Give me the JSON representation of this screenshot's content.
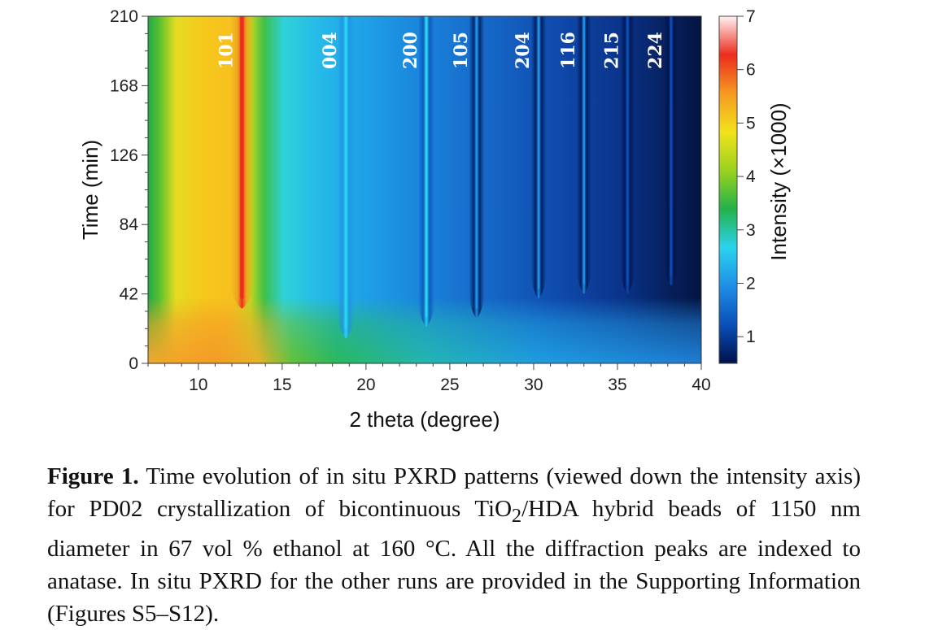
{
  "chart_data": {
    "type": "heatmap",
    "xlabel": "2 theta (degree)",
    "ylabel": "Time (min)",
    "colorbar_label": "Intensity (×1000)",
    "xlim": [
      7,
      40
    ],
    "ylim": [
      0,
      210
    ],
    "x_ticks": [
      10,
      15,
      20,
      25,
      30,
      35,
      40
    ],
    "y_ticks": [
      0,
      42,
      84,
      126,
      168,
      210
    ],
    "colorbar_range": [
      0.5,
      7
    ],
    "colorbar_ticks": [
      1,
      2,
      3,
      4,
      5,
      6,
      7
    ],
    "peaks": [
      {
        "label": "101",
        "x": 12.6,
        "onset": 36,
        "intensity": 6.5
      },
      {
        "label": "004",
        "x": 18.8,
        "onset": 18,
        "intensity": 3.0
      },
      {
        "label": "200",
        "x": 23.6,
        "onset": 25,
        "intensity": 2.6
      },
      {
        "label": "105",
        "x": 26.6,
        "onset": 30,
        "intensity": 2.0
      },
      {
        "label": "204",
        "x": 30.3,
        "onset": 42,
        "intensity": 1.9
      },
      {
        "label": "116",
        "x": 33.0,
        "onset": 45,
        "intensity": 1.6
      },
      {
        "label": "215",
        "x": 35.6,
        "onset": 45,
        "intensity": 1.5
      },
      {
        "label": "224",
        "x": 38.2,
        "onset": 50,
        "intensity": 1.25
      }
    ],
    "colors": {
      "colormap": [
        "#00124a",
        "#0a4fb8",
        "#1f8ee6",
        "#2ad4ee",
        "#22b24a",
        "#9bd21e",
        "#f2e21c",
        "#f59a20",
        "#ec2c1e",
        "#fff2f2"
      ]
    }
  },
  "caption": {
    "label": "Figure 1.",
    "text_1": " Time evolution of in situ PXRD patterns (viewed down the intensity axis) for PD02 crystallization of bicontinuous TiO",
    "sub_1": "2",
    "text_2": "/HDA hybrid beads of 1150 nm diameter in 67 vol % ethanol at 160 °C. All the diffraction peaks are indexed to anatase. In situ PXRD for the other runs are provided in the Supporting Information (Figures S5–S12)."
  }
}
